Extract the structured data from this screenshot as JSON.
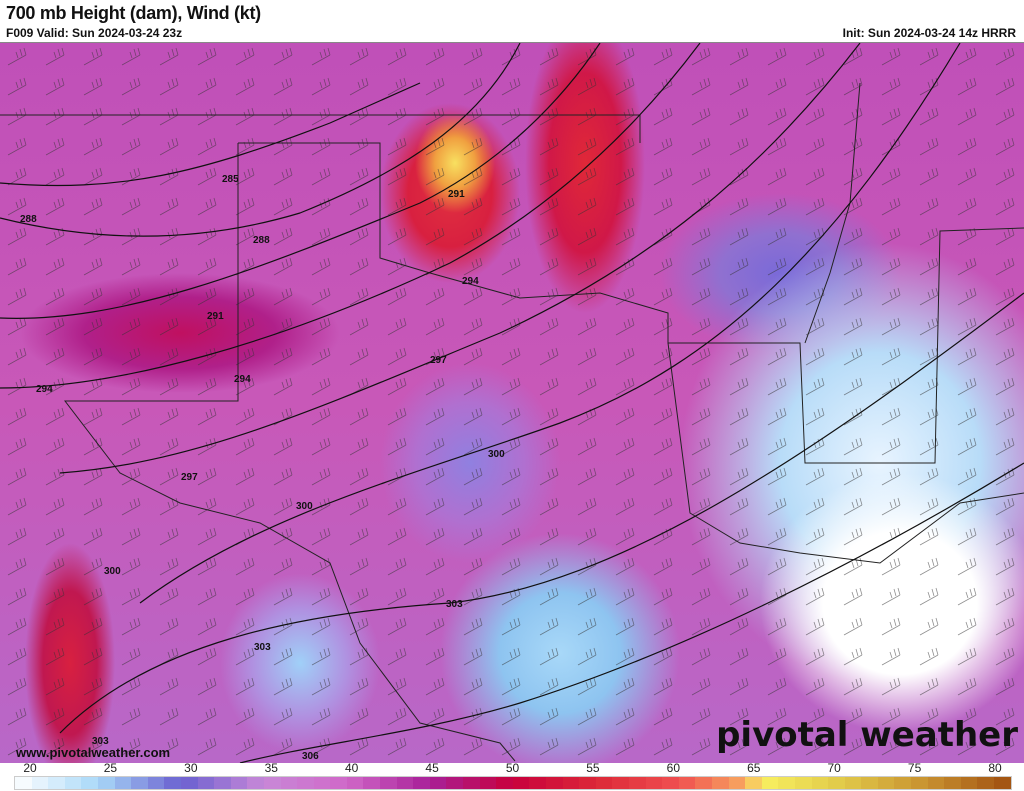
{
  "header": {
    "title": "700 mb Height (dam), Wind (kt)",
    "valid": "F009 Valid: Sun 2024-03-24 23z",
    "init": "Init: Sun 2024-03-24 14z HRRR"
  },
  "map": {
    "contour_labels": [
      "285",
      "288",
      "288",
      "291",
      "291",
      "294",
      "294",
      "294",
      "297",
      "297",
      "300",
      "300",
      "300",
      "303",
      "303",
      "303",
      "306"
    ],
    "website": "www.pivotalweather.com",
    "logo": "pivotal weather"
  },
  "colorbar": {
    "ticks": [
      "20",
      "25",
      "30",
      "35",
      "40",
      "45",
      "50",
      "55",
      "60",
      "65",
      "70",
      "75",
      "80"
    ],
    "range": [
      20,
      80
    ],
    "stops": [
      [
        20,
        "#ffffff"
      ],
      [
        25,
        "#a8d8f8"
      ],
      [
        30,
        "#6a60d0"
      ],
      [
        35,
        "#c888d8"
      ],
      [
        40,
        "#d068c8"
      ],
      [
        45,
        "#a82098"
      ],
      [
        50,
        "#c8003c"
      ],
      [
        55,
        "#dc2838"
      ],
      [
        60,
        "#f05050"
      ],
      [
        64,
        "#f8a860"
      ],
      [
        65,
        "#f8f060"
      ],
      [
        70,
        "#e0c848"
      ],
      [
        75,
        "#c89030"
      ],
      [
        80,
        "#a05010"
      ]
    ]
  }
}
